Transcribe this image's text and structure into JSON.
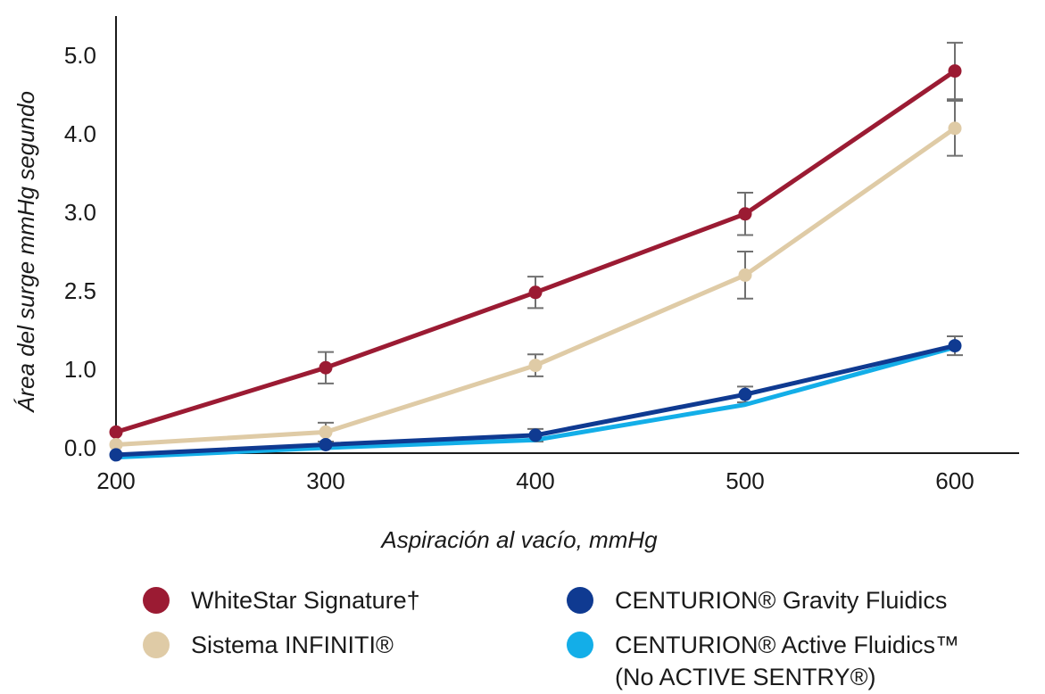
{
  "chart_data": {
    "type": "line",
    "title": "",
    "xlabel": "Aspiración al vacío, mmHg",
    "ylabel": "Área del surge mmHg segundo",
    "x": [
      200,
      300,
      400,
      500,
      600
    ],
    "x_ticks": [
      "200",
      "300",
      "400",
      "500",
      "600"
    ],
    "y_ticks": [
      "0.0",
      "1.0",
      "2.5",
      "3.0",
      "4.0",
      "5.0"
    ],
    "grid": false,
    "legend_position": "bottom",
    "series": [
      {
        "name": "WhiteStar Signature†",
        "color": "#9b1b33",
        "values": [
          0.2,
          1.02,
          1.98,
          2.98,
          4.8
        ],
        "errors": [
          0,
          0.2,
          0.2,
          0.27,
          0.36
        ],
        "label_line2": ""
      },
      {
        "name": "Sistema INFINITI®",
        "color": "#dfcba6",
        "values": [
          0.04,
          0.2,
          1.05,
          2.2,
          4.07
        ],
        "errors": [
          0,
          0.12,
          0.14,
          0.3,
          0.35
        ],
        "label_line2": ""
      },
      {
        "name": "CENTURION® Gravity Fluidics",
        "color": "#0f3a91",
        "values": [
          -0.09,
          0.04,
          0.16,
          0.68,
          1.3
        ],
        "errors": [
          0,
          0,
          0.08,
          0.1,
          0.12
        ],
        "label_line2": ""
      },
      {
        "name": "CENTURION® Active Fluidics™",
        "color": "#13aee8",
        "values": [
          -0.12,
          0.0,
          0.1,
          0.55,
          1.28
        ],
        "errors": [
          0,
          0,
          0,
          0,
          0
        ],
        "label_line2": "(No ACTIVE SENTRY®)"
      }
    ]
  }
}
